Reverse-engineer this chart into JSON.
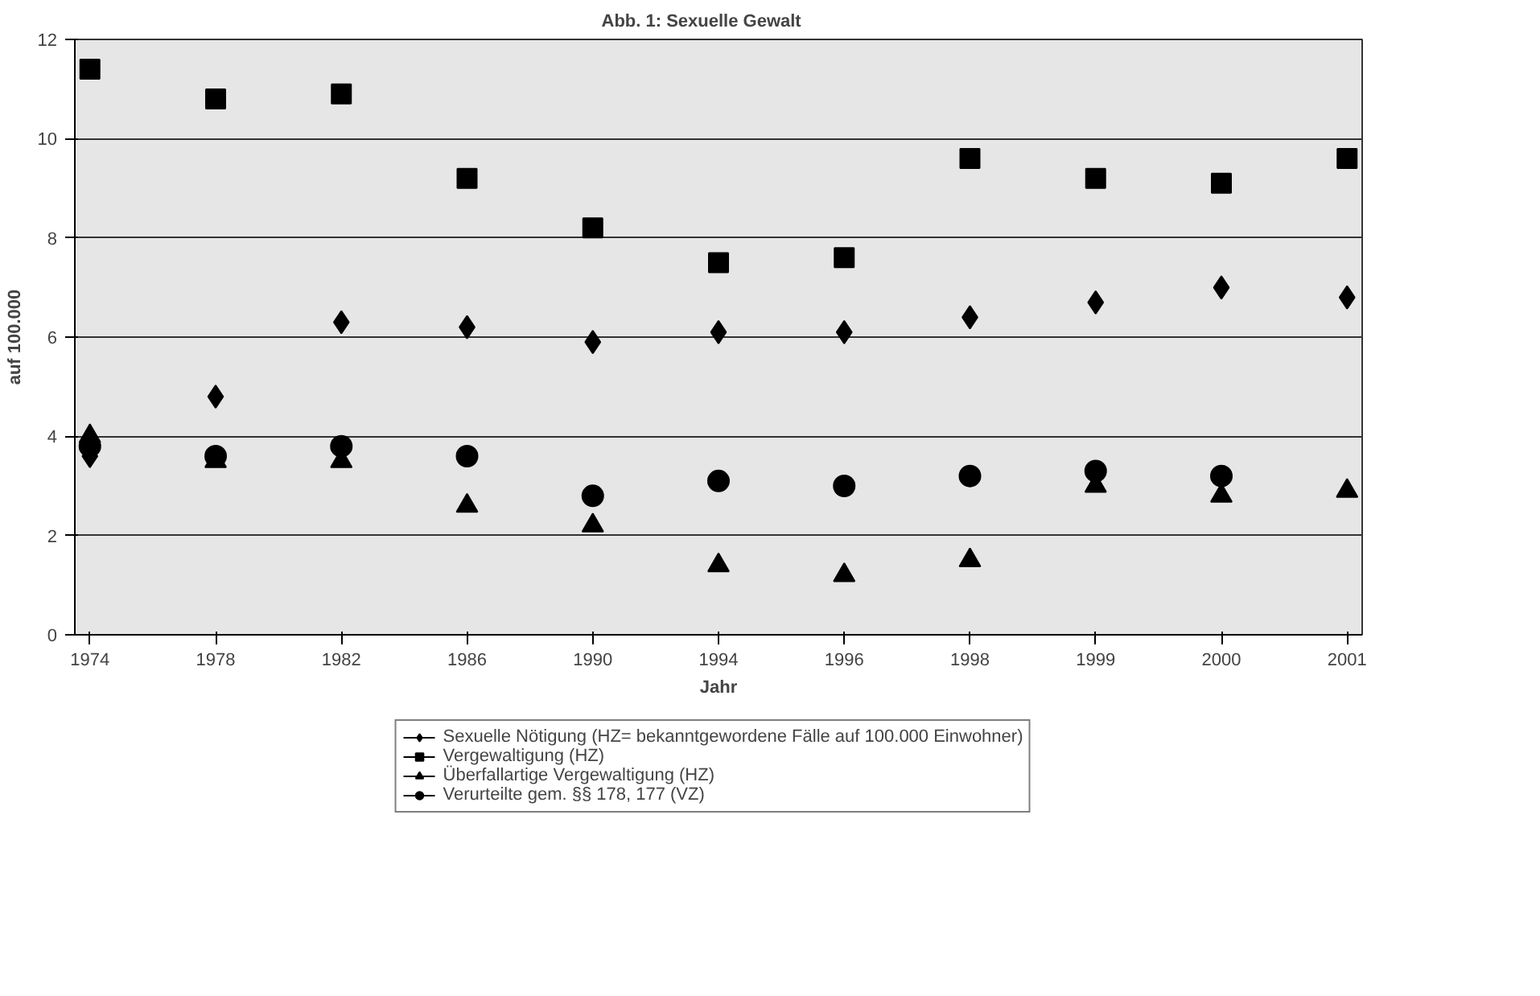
{
  "chart_data": {
    "type": "scatter",
    "title": "Abb. 1:        Sexuelle Gewalt",
    "xlabel": "Jahr",
    "ylabel": "auf 100.000",
    "categories": [
      "1974",
      "1978",
      "1982",
      "1986",
      "1990",
      "1994",
      "1996",
      "1998",
      "1999",
      "2000",
      "2001"
    ],
    "series": [
      {
        "name": "Sexuelle Nötigung (HZ= bekanntgewordene Fälle auf 100.000 Einwohner)",
        "color": "#000000",
        "marker": "diamond",
        "values": [
          3.6,
          4.8,
          6.3,
          6.2,
          5.9,
          6.1,
          6.1,
          6.4,
          6.7,
          7.0,
          6.8
        ]
      },
      {
        "name": "Vergewaltigung (HZ)",
        "color": "#000000",
        "marker": "square",
        "values": [
          11.4,
          10.8,
          10.9,
          9.2,
          8.2,
          7.5,
          7.6,
          9.6,
          9.2,
          9.1,
          9.6
        ]
      },
      {
        "name": "Überfallartige Vergewaltigung (HZ)",
        "color": "#000000",
        "marker": "triangle",
        "values": [
          4.0,
          3.5,
          3.5,
          2.6,
          2.2,
          1.4,
          1.2,
          1.5,
          3.0,
          2.8,
          2.9
        ]
      },
      {
        "name": "Verurteilte gem. §§ 178, 177 (VZ)",
        "color": "#000000",
        "marker": "circle",
        "values": [
          3.8,
          3.6,
          3.8,
          3.6,
          2.8,
          3.1,
          3.0,
          3.2,
          3.3,
          3.2,
          null
        ]
      }
    ],
    "ylim": [
      0,
      12
    ],
    "yticks": [
      0,
      2,
      4,
      6,
      8,
      10,
      12
    ],
    "grid": "y",
    "legend": "bottom"
  }
}
